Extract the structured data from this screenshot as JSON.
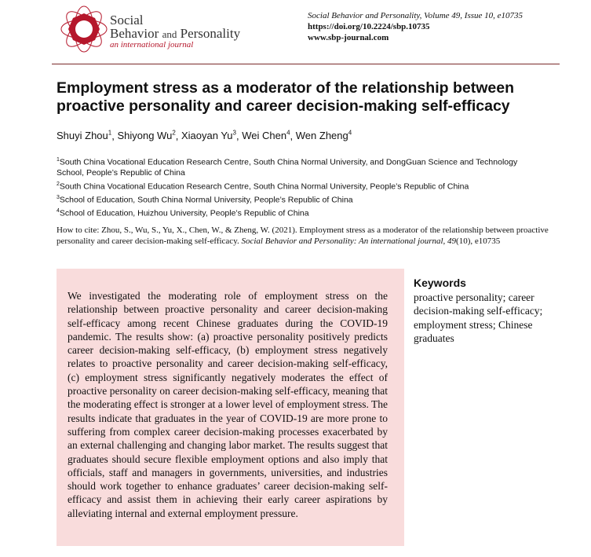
{
  "header": {
    "brand_line1": "Social",
    "brand_line2a": "Behavior",
    "brand_line2b": "and",
    "brand_line2c": "Personality",
    "brand_tagline": "an international journal",
    "journal_ref": "Social Behavior and Personality, Volume 49, Issue 10, e10735",
    "doi": "https://doi.org/10.2224/sbp.10735",
    "website": "www.sbp-journal.com",
    "accent_color": "#b5172b"
  },
  "title": "Employment stress as a moderator of the relationship between proactive personality and career decision-making self-efficacy",
  "authors": [
    {
      "name": "Shuyi Zhou",
      "aff": "1"
    },
    {
      "name": "Shiyong Wu",
      "aff": "2"
    },
    {
      "name": "Xiaoyan Yu",
      "aff": "3"
    },
    {
      "name": "Wei Chen",
      "aff": "4"
    },
    {
      "name": "Wen Zheng",
      "aff": "4"
    }
  ],
  "affiliations": [
    {
      "num": "1",
      "text": "South China Vocational Education Research Centre, South China Normal University, and DongGuan Science and Technology School, People’s Republic of China"
    },
    {
      "num": "2",
      "text": "South China Vocational Education Research Centre, South China Normal University, People’s Republic of China"
    },
    {
      "num": "3",
      "text": "School of Education, South China Normal University, People’s Republic of China"
    },
    {
      "num": "4",
      "text": "School of Education, Huizhou University, People’s Republic of China"
    }
  ],
  "citation": {
    "prefix": "How to cite: Zhou, S., Wu, S., Yu, X., Chen, W., & Zheng, W. (2021). Employment stress as a moderator of the relationship between proactive personality and career decision-making self-efficacy. ",
    "journal": "Social Behavior and Personality: An international journal, 49",
    "suffix": "(10), e10735"
  },
  "abstract": "We investigated the moderating role of employment stress on the relationship between proactive personality and career decision-making self-efficacy among recent Chinese graduates during the COVID-19 pandemic. The results show: (a) proactive personality positively predicts career decision-making self-efficacy, (b) employment stress negatively relates to proactive personality and career decision-making self-efficacy, (c) employment stress significantly negatively moderates the effect of proactive personality on career decision-making self-efficacy, meaning that the moderating effect is stronger at a lower level of employment stress. The results indicate that graduates in the year of COVID-19 are more prone to suffering from complex career decision-making processes exacerbated by an external challenging and changing labor market. The results suggest that graduates should secure flexible employment options and also imply that officials, staff and managers in governments, universities, and industries should work together to enhance graduates’ career decision-making self-efficacy and assist them in achieving their early career aspirations by alleviating internal and external employment pressure.",
  "keywords": {
    "heading": "Keywords",
    "text": "proactive personality; career decision-making self-efficacy; employment stress; Chinese graduates"
  }
}
